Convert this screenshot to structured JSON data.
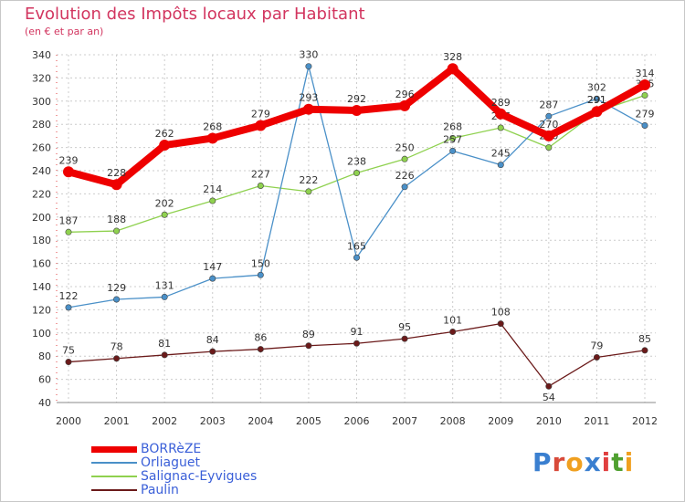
{
  "title": "Evolution des Impôts locaux par Habitant",
  "subtitle": "(en € et par an)",
  "logo_text": "Proxiti",
  "colors": {
    "title": "#d2355f",
    "grid": "#cccccc",
    "axis": "#888888",
    "legend_text": "#3a5fd8"
  },
  "chart_data": {
    "type": "line",
    "x": [
      "2000",
      "2001",
      "2002",
      "2003",
      "2004",
      "2005",
      "2006",
      "2007",
      "2008",
      "2009",
      "2010",
      "2011",
      "2012"
    ],
    "y_ticks": [
      40,
      60,
      80,
      100,
      120,
      140,
      160,
      180,
      200,
      220,
      240,
      260,
      280,
      300,
      320,
      340
    ],
    "ylim": [
      40,
      340
    ],
    "grid": true,
    "legend_position": "bottom-left",
    "series": [
      {
        "name": "BORRèZE",
        "color": "#ee0000",
        "values": [
          239,
          228,
          262,
          268,
          279,
          293,
          292,
          296,
          328,
          289,
          270,
          291,
          314
        ],
        "labels": [
          "239",
          "228",
          "262",
          "268",
          "279",
          "293",
          "292",
          "296",
          "328",
          "289",
          "270",
          "291",
          "314"
        ]
      },
      {
        "name": "Orliaguet",
        "color": "#4a90c8",
        "values": [
          122,
          129,
          131,
          147,
          150,
          330,
          165,
          226,
          257,
          245,
          287,
          302,
          279
        ],
        "labels": [
          "122",
          "129",
          "131",
          "147",
          "150",
          "330",
          "165",
          "226",
          "257",
          "245",
          "287",
          "302",
          "279"
        ]
      },
      {
        "name": "Salignac-Eyvigues",
        "color": "#8fd14f",
        "values": [
          187,
          188,
          202,
          214,
          227,
          222,
          238,
          250,
          268,
          277,
          260,
          291,
          305
        ],
        "labels": [
          "187",
          "188",
          "202",
          "214",
          "227",
          "222",
          "238",
          "250",
          "268",
          "277",
          "260",
          "291",
          "305"
        ]
      },
      {
        "name": "Paulin",
        "color": "#6b1a1a",
        "values": [
          75,
          78,
          81,
          84,
          86,
          89,
          91,
          95,
          101,
          108,
          54,
          79,
          85
        ],
        "labels": [
          "75",
          "78",
          "81",
          "84",
          "86",
          "89",
          "91",
          "95",
          "101",
          "108",
          "54",
          "79",
          "85"
        ]
      }
    ]
  }
}
